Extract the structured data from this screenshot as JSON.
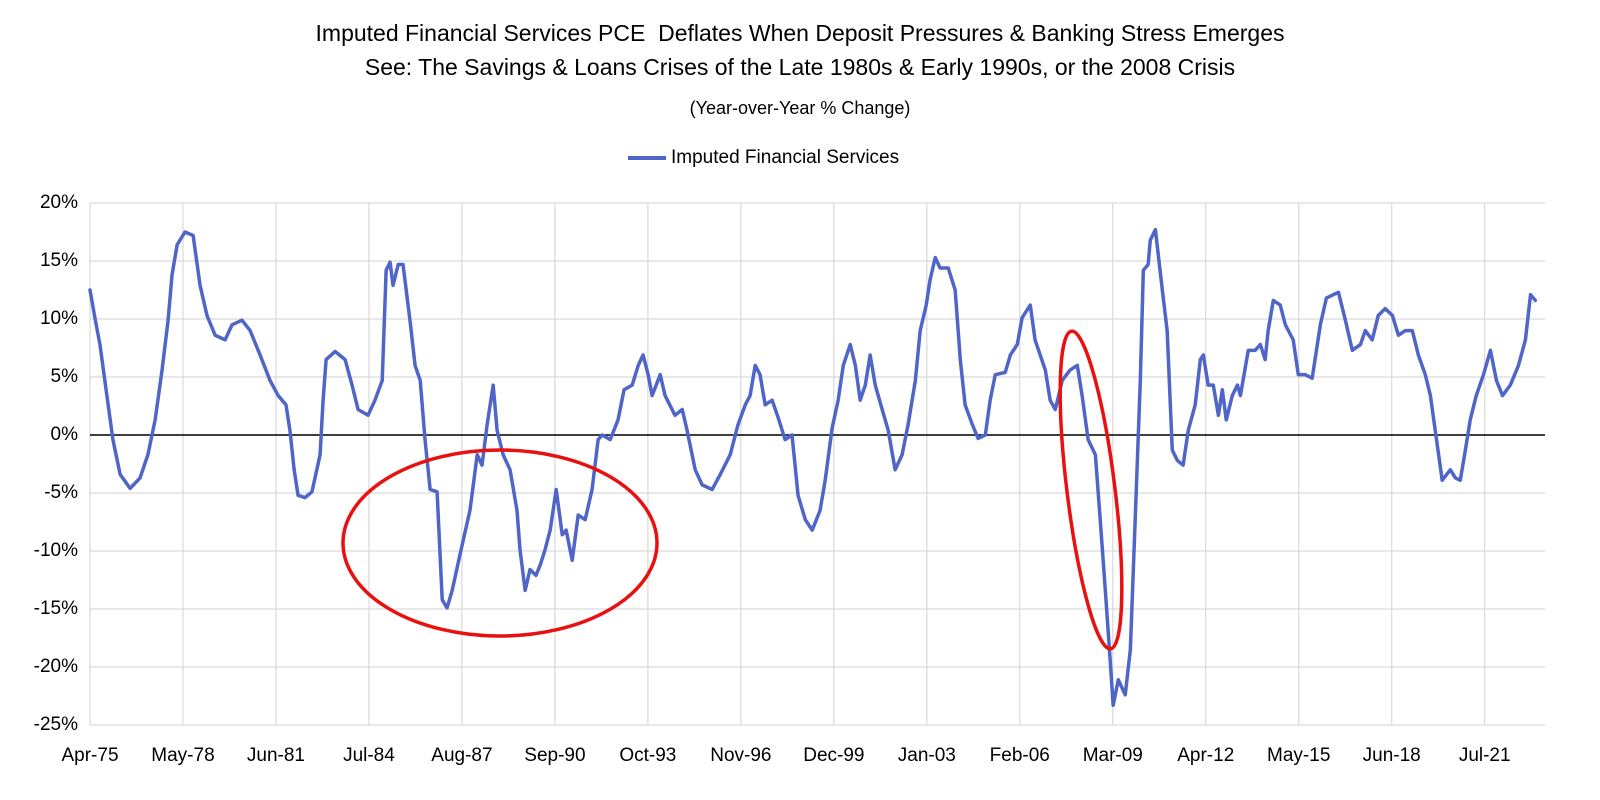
{
  "chart_data": {
    "type": "line",
    "title": "Imputed Financial Services PCE  Deflates When Deposit Pressures & Banking Stress Emerges",
    "title_line2": "See: The Savings & Loans Crises of the Late 1980s & Early 1990s, or the 2008 Crisis",
    "subtitle": "(Year-over-Year % Change)",
    "legend": "top",
    "grid": true,
    "xlim": [
      1975.25,
      2023.5
    ],
    "ylim": [
      -25,
      20
    ],
    "yticks": [
      {
        "value": 20,
        "label": "20%"
      },
      {
        "value": 15,
        "label": "15%"
      },
      {
        "value": 10,
        "label": "10%"
      },
      {
        "value": 5,
        "label": "5%"
      },
      {
        "value": 0,
        "label": "0%"
      },
      {
        "value": -5,
        "label": "-5%"
      },
      {
        "value": -10,
        "label": "-10%"
      },
      {
        "value": -15,
        "label": "-15%"
      },
      {
        "value": -20,
        "label": "-20%"
      },
      {
        "value": -25,
        "label": "-25%"
      }
    ],
    "xticks": [
      {
        "value": 1975.25,
        "label": "Apr-75"
      },
      {
        "value": 1978.333,
        "label": "May-78"
      },
      {
        "value": 1981.417,
        "label": "Jun-81"
      },
      {
        "value": 1984.5,
        "label": "Jul-84"
      },
      {
        "value": 1987.583,
        "label": "Aug-87"
      },
      {
        "value": 1990.667,
        "label": "Sep-90"
      },
      {
        "value": 1993.75,
        "label": "Oct-93"
      },
      {
        "value": 1996.833,
        "label": "Nov-96"
      },
      {
        "value": 1999.917,
        "label": "Dec-99"
      },
      {
        "value": 2003.0,
        "label": "Jan-03"
      },
      {
        "value": 2006.083,
        "label": "Feb-06"
      },
      {
        "value": 2009.167,
        "label": "Mar-09"
      },
      {
        "value": 2012.25,
        "label": "Apr-12"
      },
      {
        "value": 2015.333,
        "label": "May-15"
      },
      {
        "value": 2018.417,
        "label": "Jun-18"
      },
      {
        "value": 2021.5,
        "label": "Jul-21"
      }
    ],
    "x": [
      1975.25,
      1975.42,
      1975.58,
      1975.81,
      1976.01,
      1976.25,
      1976.58,
      1976.91,
      1977.17,
      1977.41,
      1977.64,
      1977.84,
      1977.97,
      1978.14,
      1978.4,
      1978.67,
      1978.9,
      1979.13,
      1979.4,
      1979.73,
      1979.96,
      1980.29,
      1980.56,
      1980.89,
      1981.22,
      1981.49,
      1981.75,
      1981.88,
      1982.02,
      1982.15,
      1982.38,
      1982.61,
      1982.88,
      1982.98,
      1983.08,
      1983.38,
      1983.71,
      1983.94,
      1984.14,
      1984.47,
      1984.7,
      1984.94,
      1985.07,
      1985.2,
      1985.3,
      1985.47,
      1985.63,
      1985.86,
      1986.03,
      1986.2,
      1986.36,
      1986.53,
      1986.76,
      1986.93,
      1987.09,
      1987.26,
      1987.52,
      1987.85,
      1988.09,
      1988.25,
      1988.42,
      1988.62,
      1988.75,
      1988.95,
      1989.18,
      1989.41,
      1989.51,
      1989.68,
      1989.84,
      1990.04,
      1990.18,
      1990.34,
      1990.51,
      1990.71,
      1990.91,
      1991.04,
      1991.24,
      1991.44,
      1991.67,
      1991.9,
      1992.1,
      1992.23,
      1992.5,
      1992.76,
      1992.96,
      1993.23,
      1993.43,
      1993.59,
      1993.76,
      1993.89,
      1994.16,
      1994.32,
      1994.65,
      1994.89,
      1995.05,
      1995.32,
      1995.55,
      1995.88,
      1996.15,
      1996.48,
      1996.74,
      1996.98,
      1997.14,
      1997.31,
      1997.47,
      1997.64,
      1997.87,
      1998.07,
      1998.3,
      1998.53,
      1998.73,
      1998.97,
      1999.2,
      1999.46,
      1999.63,
      1999.86,
      2000.06,
      2000.23,
      2000.46,
      2000.63,
      2000.79,
      2000.96,
      2001.12,
      2001.29,
      2001.52,
      2001.72,
      2001.95,
      2002.18,
      2002.38,
      2002.62,
      2002.78,
      2002.98,
      2003.11,
      2003.28,
      2003.44,
      2003.71,
      2003.94,
      2004.11,
      2004.27,
      2004.51,
      2004.7,
      2004.94,
      2005.1,
      2005.27,
      2005.6,
      2005.77,
      2006.0,
      2006.16,
      2006.43,
      2006.59,
      2006.93,
      2007.09,
      2007.26,
      2007.49,
      2007.75,
      2007.99,
      2008.15,
      2008.35,
      2008.59,
      2008.75,
      2008.92,
      2009.08,
      2009.18,
      2009.35,
      2009.58,
      2009.75,
      2009.91,
      2010.08,
      2010.18,
      2010.34,
      2010.41,
      2010.58,
      2010.81,
      2010.97,
      2011.14,
      2011.31,
      2011.5,
      2011.67,
      2011.9,
      2012.07,
      2012.17,
      2012.33,
      2012.5,
      2012.67,
      2012.8,
      2012.93,
      2013.13,
      2013.3,
      2013.4,
      2013.66,
      2013.89,
      2014.06,
      2014.22,
      2014.32,
      2014.49,
      2014.72,
      2014.89,
      2015.15,
      2015.32,
      2015.55,
      2015.78,
      2016.05,
      2016.25,
      2016.48,
      2016.65,
      2016.88,
      2017.11,
      2017.38,
      2017.54,
      2017.77,
      2017.97,
      2018.2,
      2018.44,
      2018.64,
      2018.87,
      2019.1,
      2019.3,
      2019.53,
      2019.7,
      2019.86,
      2020.09,
      2020.36,
      2020.53,
      2020.69,
      2020.86,
      2021.02,
      2021.22,
      2021.46,
      2021.69,
      2021.89,
      2022.09,
      2022.35,
      2022.62,
      2022.85,
      2023.02,
      2023.18
    ],
    "series": [
      {
        "name": "Imputed Financial Services",
        "color": "#4f65c8",
        "values": [
          12.5,
          10,
          7.8,
          3.4,
          -0.4,
          -3.4,
          -4.6,
          -3.7,
          -1.7,
          1.3,
          5.6,
          9.9,
          13.8,
          16.4,
          17.5,
          17.2,
          12.9,
          10.3,
          8.6,
          8.2,
          9.5,
          9.9,
          9.0,
          6.9,
          4.7,
          3.4,
          2.6,
          0.4,
          -3.0,
          -5.2,
          -5.4,
          -4.9,
          -1.7,
          3.0,
          6.5,
          7.2,
          6.5,
          4.3,
          2.2,
          1.7,
          3.0,
          4.7,
          14.2,
          14.9,
          12.9,
          14.7,
          14.7,
          9.9,
          6.0,
          4.7,
          -0.4,
          -4.7,
          -4.9,
          -14.2,
          -14.9,
          -13.4,
          -10.3,
          -6.5,
          -1.7,
          -2.6,
          0.9,
          4.3,
          0.4,
          -1.7,
          -3.0,
          -6.5,
          -9.9,
          -13.4,
          -11.6,
          -12.1,
          -11.2,
          -9.9,
          -8.2,
          -4.7,
          -8.6,
          -8.2,
          -10.8,
          -6.9,
          -7.3,
          -4.7,
          -0.4,
          0,
          -0.4,
          1.3,
          3.9,
          4.3,
          6.0,
          6.9,
          5.2,
          3.4,
          5.2,
          3.4,
          1.7,
          2.2,
          0.4,
          -3.0,
          -4.3,
          -4.7,
          -3.4,
          -1.7,
          0.9,
          2.6,
          3.4,
          6.0,
          5.2,
          2.6,
          3.0,
          1.5,
          -0.4,
          0,
          -5.2,
          -7.3,
          -8.2,
          -6.5,
          -3.9,
          0.6,
          3.0,
          6.0,
          7.8,
          6.0,
          3.0,
          4.3,
          6.9,
          4.3,
          2.2,
          0.4,
          -3.0,
          -1.7,
          0.9,
          4.7,
          9.0,
          11.2,
          13.4,
          15.3,
          14.4,
          14.4,
          12.5,
          6.5,
          2.6,
          0.9,
          -0.3,
          0,
          3.0,
          5.2,
          5.4,
          6.9,
          7.8,
          10.1,
          11.2,
          8.2,
          5.6,
          3.0,
          2.2,
          4.7,
          5.6,
          6.0,
          3.4,
          -0.4,
          -1.7,
          -7.3,
          -13.4,
          -19.4,
          -23.3,
          -21.1,
          -22.4,
          -18.5,
          -7.3,
          4.7,
          14.2,
          14.7,
          16.8,
          17.7,
          12.5,
          9.0,
          -1.3,
          -2.2,
          -2.6,
          0.4,
          2.6,
          6.5,
          6.9,
          4.3,
          4.3,
          1.7,
          3.9,
          1.3,
          3.4,
          4.3,
          3.4,
          7.3,
          7.3,
          7.8,
          6.5,
          9.0,
          11.6,
          11.2,
          9.5,
          8.2,
          5.2,
          5.2,
          4.9,
          9.5,
          11.8,
          12.1,
          12.3,
          9.9,
          7.3,
          7.8,
          9.0,
          8.2,
          10.3,
          10.9,
          10.3,
          8.6,
          9.0,
          9.0,
          6.9,
          5.2,
          3.4,
          0.4,
          -3.9,
          -3.0,
          -3.7,
          -3.9,
          -1.3,
          1.3,
          3.4,
          5.2,
          7.3,
          4.7,
          3.4,
          4.3,
          6.0,
          8.2,
          12.1,
          11.6
        ]
      }
    ]
  }
}
